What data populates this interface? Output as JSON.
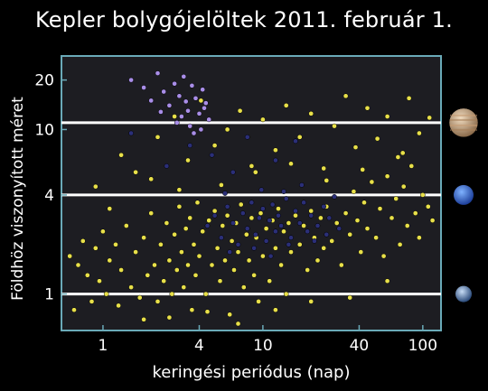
{
  "chart_data": {
    "type": "scatter",
    "title": "Kepler bolygójelöltek 2011. február 1.",
    "xlabel": "keringési periódus (nap)",
    "ylabel": "Földhöz viszonyított méret",
    "x_scale": "log",
    "y_scale": "log",
    "xlim": [
      0.55,
      130
    ],
    "ylim": [
      0.6,
      28
    ],
    "x_ticks": [
      1,
      4,
      10,
      40,
      100
    ],
    "x_tick_labels": [
      "1",
      "4",
      "10",
      "40",
      "100"
    ],
    "y_ticks": [
      1,
      4,
      10,
      20
    ],
    "y_tick_labels": [
      "1",
      "4",
      "10",
      "20"
    ],
    "reference_lines": [
      {
        "y": 1,
        "planet": "earth-icon"
      },
      {
        "y": 4,
        "planet": "neptune-icon"
      },
      {
        "y": 11,
        "planet": "jupiter-icon"
      }
    ],
    "series": [
      {
        "color": "#e8e04a",
        "points": [
          [
            0.62,
            1.7
          ],
          [
            0.66,
            0.8
          ],
          [
            0.7,
            1.5
          ],
          [
            0.75,
            2.1
          ],
          [
            0.8,
            1.3
          ],
          [
            0.85,
            0.9
          ],
          [
            0.9,
            1.9
          ],
          [
            0.95,
            1.2
          ],
          [
            1.0,
            2.4
          ],
          [
            1.05,
            1.0
          ],
          [
            1.1,
            1.6
          ],
          [
            1.2,
            2.0
          ],
          [
            1.25,
            0.85
          ],
          [
            1.3,
            1.4
          ],
          [
            1.4,
            2.6
          ],
          [
            1.5,
            1.1
          ],
          [
            1.6,
            1.8
          ],
          [
            1.7,
            0.95
          ],
          [
            1.8,
            2.2
          ],
          [
            1.9,
            1.3
          ],
          [
            2.0,
            3.1
          ],
          [
            2.1,
            1.5
          ],
          [
            2.2,
            0.9
          ],
          [
            2.3,
            2.0
          ],
          [
            2.4,
            1.2
          ],
          [
            2.5,
            2.7
          ],
          [
            2.6,
            1.6
          ],
          [
            2.7,
            1.0
          ],
          [
            2.8,
            2.3
          ],
          [
            2.9,
            1.4
          ],
          [
            3.0,
            3.4
          ],
          [
            3.1,
            1.8
          ],
          [
            3.2,
            1.1
          ],
          [
            3.3,
            2.5
          ],
          [
            3.4,
            1.5
          ],
          [
            3.5,
            2.9
          ],
          [
            3.6,
            0.8
          ],
          [
            3.7,
            2.0
          ],
          [
            3.8,
            1.3
          ],
          [
            3.9,
            3.6
          ],
          [
            4.0,
            1.7
          ],
          [
            4.2,
            2.4
          ],
          [
            4.4,
            1.0
          ],
          [
            4.6,
            2.8
          ],
          [
            4.8,
            1.5
          ],
          [
            5.0,
            3.2
          ],
          [
            5.2,
            1.9
          ],
          [
            5.4,
            1.2
          ],
          [
            5.6,
            2.6
          ],
          [
            5.8,
            1.6
          ],
          [
            6.0,
            3.0
          ],
          [
            6.2,
            0.75
          ],
          [
            6.4,
            2.1
          ],
          [
            6.6,
            1.4
          ],
          [
            6.8,
            2.7
          ],
          [
            7.0,
            1.8
          ],
          [
            7.3,
            3.5
          ],
          [
            7.6,
            1.1
          ],
          [
            7.9,
            2.3
          ],
          [
            8.2,
            1.6
          ],
          [
            8.5,
            2.9
          ],
          [
            8.8,
            1.3
          ],
          [
            9.1,
            2.2
          ],
          [
            9.4,
            0.9
          ],
          [
            9.7,
            3.1
          ],
          [
            10.0,
            1.7
          ],
          [
            10.5,
            2.5
          ],
          [
            11.0,
            1.2
          ],
          [
            11.5,
            2.8
          ],
          [
            12.0,
            1.9
          ],
          [
            12.5,
            3.3
          ],
          [
            13.0,
            1.5
          ],
          [
            13.5,
            2.4
          ],
          [
            14.0,
            1.0
          ],
          [
            14.5,
            2.7
          ],
          [
            15.0,
            1.8
          ],
          [
            16.0,
            3.0
          ],
          [
            17.0,
            2.0
          ],
          [
            18.0,
            2.6
          ],
          [
            19.0,
            1.4
          ],
          [
            20.0,
            3.2
          ],
          [
            21.0,
            2.2
          ],
          [
            22.0,
            1.6
          ],
          [
            23.0,
            2.9
          ],
          [
            24.0,
            1.9
          ],
          [
            25.0,
            3.4
          ],
          [
            27.0,
            2.1
          ],
          [
            29.0,
            2.7
          ],
          [
            31.0,
            1.5
          ],
          [
            33.0,
            3.1
          ],
          [
            35.0,
            2.3
          ],
          [
            37.0,
            4.2
          ],
          [
            39.0,
            2.8
          ],
          [
            41.0,
            1.8
          ],
          [
            43.0,
            3.6
          ],
          [
            45.0,
            2.5
          ],
          [
            48.0,
            4.8
          ],
          [
            51.0,
            2.2
          ],
          [
            54.0,
            3.3
          ],
          [
            57.0,
            1.7
          ],
          [
            60.0,
            5.2
          ],
          [
            64.0,
            2.9
          ],
          [
            68.0,
            3.8
          ],
          [
            72.0,
            2.0
          ],
          [
            76.0,
            4.5
          ],
          [
            80.0,
            2.6
          ],
          [
            85.0,
            6.0
          ],
          [
            90.0,
            3.1
          ],
          [
            95.0,
            2.2
          ],
          [
            100.0,
            4.0
          ],
          [
            108.0,
            3.4
          ],
          [
            115.0,
            2.8
          ],
          [
            1.8,
            0.7
          ],
          [
            2.6,
            0.72
          ],
          [
            4.5,
            0.78
          ],
          [
            7.0,
            0.66
          ],
          [
            12.0,
            0.8
          ],
          [
            20.0,
            0.9
          ],
          [
            35.0,
            0.95
          ],
          [
            60.0,
            1.2
          ],
          [
            1.3,
            7.0
          ],
          [
            1.6,
            5.5
          ],
          [
            2.2,
            9.0
          ],
          [
            2.8,
            12.0
          ],
          [
            3.4,
            6.5
          ],
          [
            4.1,
            15.0
          ],
          [
            5.0,
            8.0
          ],
          [
            6.0,
            10.0
          ],
          [
            7.2,
            13.0
          ],
          [
            8.5,
            6.0
          ],
          [
            10.0,
            11.5
          ],
          [
            12.0,
            7.5
          ],
          [
            14.0,
            14.0
          ],
          [
            17.0,
            9.0
          ],
          [
            20.0,
            12.5
          ],
          [
            24.0,
            5.8
          ],
          [
            28.0,
            10.5
          ],
          [
            33.0,
            16.0
          ],
          [
            38.0,
            7.8
          ],
          [
            45.0,
            13.5
          ],
          [
            52.0,
            8.8
          ],
          [
            60.0,
            12.0
          ],
          [
            70.0,
            6.8
          ],
          [
            82.0,
            15.5
          ],
          [
            95.0,
            9.5
          ],
          [
            110.0,
            11.8
          ],
          [
            0.9,
            4.5
          ],
          [
            1.1,
            3.3
          ],
          [
            2.0,
            5.0
          ],
          [
            3.0,
            4.3
          ],
          [
            5.5,
            4.6
          ],
          [
            9.0,
            5.5
          ],
          [
            15.0,
            6.2
          ],
          [
            25.0,
            4.9
          ],
          [
            42.0,
            5.7
          ],
          [
            75.0,
            7.2
          ]
        ]
      },
      {
        "color": "#2b2f78",
        "points": [
          [
            4.5,
            2.6
          ],
          [
            5.0,
            3.0
          ],
          [
            5.5,
            2.2
          ],
          [
            6.0,
            3.4
          ],
          [
            6.5,
            2.7
          ],
          [
            7.0,
            2.0
          ],
          [
            7.5,
            3.1
          ],
          [
            8.0,
            2.5
          ],
          [
            8.5,
            3.6
          ],
          [
            9.0,
            2.3
          ],
          [
            9.5,
            2.9
          ],
          [
            10.0,
            3.3
          ],
          [
            10.5,
            2.1
          ],
          [
            11.0,
            2.8
          ],
          [
            11.5,
            3.5
          ],
          [
            12.0,
            2.4
          ],
          [
            12.5,
            3.0
          ],
          [
            13.0,
            2.6
          ],
          [
            14.0,
            3.8
          ],
          [
            15.0,
            2.2
          ],
          [
            16.0,
            3.2
          ],
          [
            17.0,
            2.7
          ],
          [
            18.0,
            3.6
          ],
          [
            19.0,
            2.4
          ],
          [
            20.0,
            3.0
          ],
          [
            22.0,
            2.6
          ],
          [
            24.0,
            3.4
          ],
          [
            26.0,
            2.9
          ],
          [
            28.0,
            3.9
          ],
          [
            30.0,
            2.5
          ],
          [
            6.2,
            1.8
          ],
          [
            8.8,
            1.9
          ],
          [
            11.2,
            1.7
          ],
          [
            14.5,
            2.0
          ],
          [
            5.8,
            4.1
          ],
          [
            9.8,
            4.3
          ],
          [
            13.5,
            4.2
          ],
          [
            17.5,
            4.6
          ],
          [
            21.0,
            2.1
          ],
          [
            25.0,
            2.3
          ],
          [
            4.8,
            7.0
          ],
          [
            6.5,
            5.5
          ],
          [
            8.0,
            9.0
          ],
          [
            3.5,
            8.0
          ],
          [
            2.5,
            6.0
          ],
          [
            1.5,
            9.5
          ],
          [
            12.0,
            6.5
          ],
          [
            16.0,
            8.5
          ]
        ]
      },
      {
        "color": "#a98ee8",
        "points": [
          [
            1.5,
            20.0
          ],
          [
            1.8,
            18.0
          ],
          [
            2.0,
            15.0
          ],
          [
            2.2,
            22.0
          ],
          [
            2.4,
            17.0
          ],
          [
            2.6,
            14.0
          ],
          [
            2.8,
            19.0
          ],
          [
            3.0,
            16.0
          ],
          [
            3.2,
            21.0
          ],
          [
            3.4,
            13.0
          ],
          [
            3.6,
            18.5
          ],
          [
            3.8,
            15.5
          ],
          [
            4.0,
            12.5
          ],
          [
            4.2,
            17.5
          ],
          [
            4.4,
            14.5
          ],
          [
            4.6,
            11.5
          ],
          [
            3.1,
            12.0
          ],
          [
            3.5,
            10.5
          ],
          [
            4.1,
            10.0
          ],
          [
            2.9,
            11.0
          ],
          [
            3.7,
            9.5
          ],
          [
            4.3,
            13.5
          ],
          [
            2.3,
            12.8
          ],
          [
            3.3,
            14.8
          ]
        ]
      }
    ]
  }
}
